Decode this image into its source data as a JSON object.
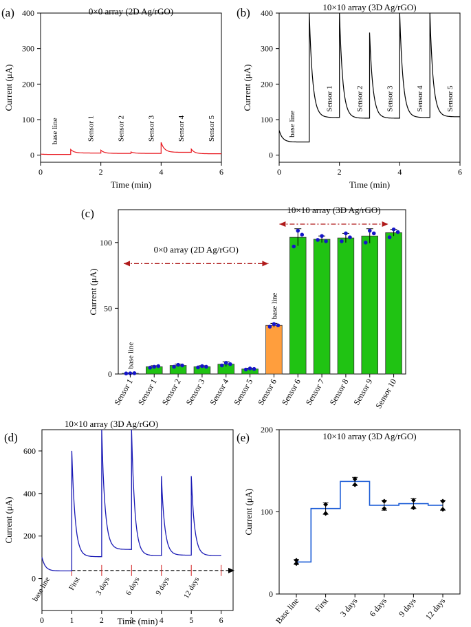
{
  "chart_data": [
    {
      "panel": "(a)",
      "type": "line",
      "title": "0×0 array (2D Ag/rGO)",
      "xlabel": "Time (min)",
      "ylabel": "Current (μA)",
      "xlim": [
        0,
        6
      ],
      "ylim": [
        -20,
        400
      ],
      "xticks": [
        0,
        2,
        4,
        6
      ],
      "yticks": [
        0,
        100,
        200,
        300,
        400
      ],
      "color": "#e8141b",
      "labels": [
        {
          "text": "base line",
          "x": 0.55,
          "y": 30
        },
        {
          "text": "Sensor 1",
          "x": 1.75,
          "y": 38
        },
        {
          "text": "Sensor 2",
          "x": 2.75,
          "y": 38
        },
        {
          "text": "Sensor 3",
          "x": 3.75,
          "y": 38
        },
        {
          "text": "Sensor 4",
          "x": 4.75,
          "y": 38
        },
        {
          "text": "Sensor 5",
          "x": 5.75,
          "y": 38
        }
      ],
      "segments": [
        {
          "x0": 0,
          "x1": 1,
          "peak": 3,
          "end": 2
        },
        {
          "x0": 1,
          "x1": 2,
          "peak": 16,
          "end": 6
        },
        {
          "x0": 2,
          "x1": 3,
          "peak": 14,
          "end": 5
        },
        {
          "x0": 3,
          "x1": 4,
          "peak": 9,
          "end": 5
        },
        {
          "x0": 4,
          "x1": 5,
          "peak": 36,
          "end": 8
        },
        {
          "x0": 5,
          "x1": 6,
          "peak": 17,
          "end": 4
        }
      ]
    },
    {
      "panel": "(b)",
      "type": "line",
      "title": "10×10 array (3D Ag/rGO)",
      "xlabel": "Time (min)",
      "ylabel": "Current (μA)",
      "xlim": [
        0,
        6
      ],
      "ylim": [
        -20,
        400
      ],
      "xticks": [
        0,
        2,
        4,
        6
      ],
      "yticks": [
        0,
        100,
        200,
        300,
        400
      ],
      "color": "#000000",
      "labels": [
        {
          "text": "base line",
          "x": 0.5,
          "y": 50
        },
        {
          "text": "Sensor 1",
          "x": 1.75,
          "y": 122
        },
        {
          "text": "Sensor 2",
          "x": 2.75,
          "y": 122
        },
        {
          "text": "Sensor 3",
          "x": 3.75,
          "y": 122
        },
        {
          "text": "Sensor 4",
          "x": 4.75,
          "y": 122
        },
        {
          "text": "Sensor 5",
          "x": 5.75,
          "y": 122
        }
      ],
      "segments": [
        {
          "x0": 0,
          "x1": 1,
          "peak": 70,
          "end": 37
        },
        {
          "x0": 1,
          "x1": 2,
          "peak": 400,
          "end": 106
        },
        {
          "x0": 2,
          "x1": 3,
          "peak": 400,
          "end": 104
        },
        {
          "x0": 3,
          "x1": 4,
          "peak": 345,
          "end": 104
        },
        {
          "x0": 4,
          "x1": 5,
          "peak": 400,
          "end": 106
        },
        {
          "x0": 5,
          "x1": 6,
          "peak": 400,
          "end": 108
        }
      ]
    },
    {
      "panel": "(c)",
      "type": "bar",
      "ylabel": "Current (μA)",
      "ylim": [
        0,
        125
      ],
      "yticks": [
        0,
        50,
        100
      ],
      "categories": [
        "Sensor 1",
        "Sensor 1",
        "Sensor 2",
        "Sensor 3",
        "Sensor 4",
        "Sensor 5",
        "Sensor 6",
        "Sensor 6",
        "Sensor 7",
        "Sensor 8",
        "Sensor 9",
        "Sensor 10"
      ],
      "values": [
        0.5,
        5.5,
        6.5,
        5.5,
        7.5,
        3.8,
        37,
        104,
        102.5,
        103.5,
        105,
        107.5
      ],
      "errors": [
        0.3,
        0.8,
        1.0,
        0.8,
        1.8,
        0.6,
        1.5,
        6.5,
        2.5,
        3.5,
        5.5,
        2.5
      ],
      "points": [
        [
          0.4,
          0.5,
          0.6
        ],
        [
          4.8,
          5.5,
          6.0
        ],
        [
          5.5,
          7.0,
          6.5
        ],
        [
          5.0,
          6.0,
          5.5
        ],
        [
          6.5,
          8.5,
          7.5
        ],
        [
          3.4,
          4.2,
          3.8
        ],
        [
          36,
          38,
          37
        ],
        [
          97,
          109,
          106
        ],
        [
          102,
          105,
          101
        ],
        [
          101,
          107,
          104
        ],
        [
          100,
          109,
          107
        ],
        [
          104,
          110,
          108
        ]
      ],
      "bar_colors": [
        "#20c313",
        "#20c313",
        "#20c313",
        "#20c313",
        "#20c313",
        "#20c313",
        "#ff9e3d",
        "#20c313",
        "#20c313",
        "#20c313",
        "#20c313",
        "#20c313"
      ],
      "point_color": "#1515c8",
      "annotations": [
        {
          "text": "0×0 array (2D Ag/rGO)",
          "y": 84,
          "from": 0,
          "to": 6.5
        },
        {
          "text": "10×10 array (3D Ag/rGO)",
          "y": 114,
          "from": 6.5,
          "to": 11.5
        }
      ],
      "bar_labels": [
        {
          "text": "base line",
          "index": 0
        },
        {
          "text": "base line",
          "index": 6
        }
      ]
    },
    {
      "panel": "(d)",
      "type": "line",
      "title": "10×10 array (3D Ag/rGO)",
      "xlabel": "Time (min)",
      "ylabel": "Current (μA)",
      "xlim": [
        0,
        6.4
      ],
      "ylim": [
        -150,
        700
      ],
      "xticks": [
        0,
        1,
        2,
        3,
        4,
        5,
        6
      ],
      "yticks": [
        0,
        200,
        400,
        600
      ],
      "color": "#1a1ab5",
      "baseline_arrow": {
        "x0": 1,
        "x1": 6.4,
        "y": 38
      },
      "markers_x": [
        1,
        2,
        3,
        4,
        5,
        6
      ],
      "labels": [
        {
          "text": "base line",
          "x": 0.45
        },
        {
          "text": "First",
          "x": 1.45
        },
        {
          "text": "3 days",
          "x": 2.45
        },
        {
          "text": "6 days",
          "x": 3.45
        },
        {
          "text": "9 days",
          "x": 4.45
        },
        {
          "text": "12 days",
          "x": 5.45
        }
      ],
      "segments": [
        {
          "x0": 0,
          "x1": 1,
          "peak": 100,
          "end": 36
        },
        {
          "x0": 1,
          "x1": 2,
          "peak": 600,
          "end": 103
        },
        {
          "x0": 2,
          "x1": 3,
          "peak": 700,
          "end": 137
        },
        {
          "x0": 3,
          "x1": 4,
          "peak": 700,
          "end": 108
        },
        {
          "x0": 4,
          "x1": 5,
          "peak": 482,
          "end": 110
        },
        {
          "x0": 5,
          "x1": 6,
          "peak": 482,
          "end": 108
        }
      ]
    },
    {
      "panel": "(e)",
      "type": "step",
      "title": "10×10 array (3D Ag/rGO)",
      "ylabel": "Current (μA)",
      "ylim": [
        0,
        200
      ],
      "yticks": [
        0,
        100,
        200
      ],
      "categories": [
        "Base line",
        "First",
        "3 days",
        "6 days",
        "9 days",
        "12 days"
      ],
      "values": [
        39,
        104,
        137,
        108,
        110,
        108
      ],
      "errors": [
        3,
        7,
        5,
        6,
        6,
        6
      ],
      "points": [
        [
          37,
          41
        ],
        [
          98,
          109
        ],
        [
          133,
          140
        ],
        [
          104,
          113
        ],
        [
          105,
          114
        ],
        [
          103,
          113
        ]
      ],
      "color": "#1a5bd6"
    }
  ],
  "panel_labels": [
    "(a)",
    "(b)",
    "(c)",
    "(d)",
    "(e)"
  ],
  "style": {
    "axis_color": "#000000",
    "bar_edge": "#333333",
    "arrow_color": "#b01a1a"
  }
}
